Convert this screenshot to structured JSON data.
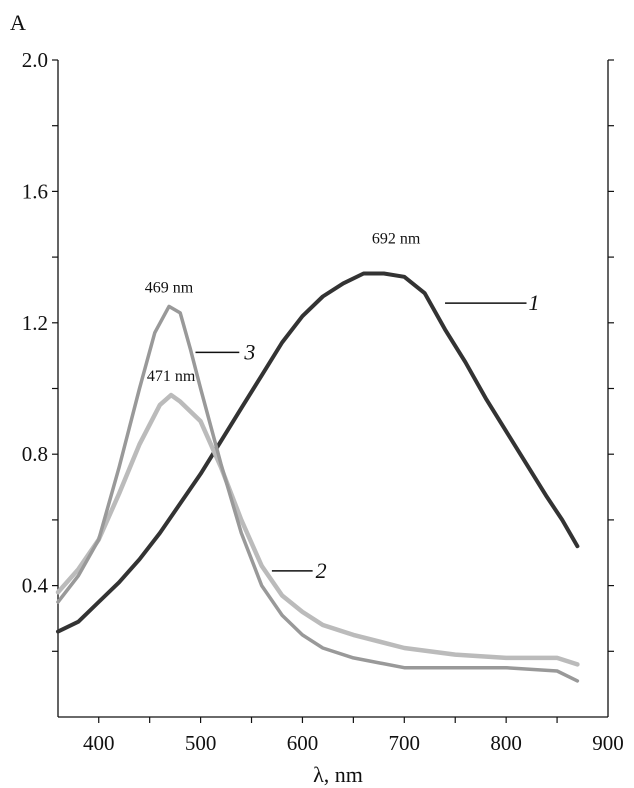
{
  "chart_data": {
    "type": "line",
    "xlabel": "λ, nm",
    "ylabel": "A",
    "xlim": [
      360,
      900
    ],
    "ylim": [
      0.0,
      2.0
    ],
    "x_ticks": [
      400,
      500,
      600,
      700,
      800,
      900
    ],
    "y_ticks": [
      0.4,
      0.8,
      1.2,
      1.6,
      2.0
    ],
    "grid": false,
    "series": [
      {
        "name": "1",
        "color": "#333333",
        "x": [
          360,
          380,
          400,
          420,
          440,
          460,
          480,
          500,
          520,
          540,
          560,
          580,
          600,
          620,
          640,
          660,
          680,
          700,
          720,
          740,
          760,
          780,
          800,
          820,
          840,
          855,
          870
        ],
        "y": [
          0.26,
          0.29,
          0.35,
          0.41,
          0.48,
          0.56,
          0.65,
          0.74,
          0.84,
          0.94,
          1.04,
          1.14,
          1.22,
          1.28,
          1.32,
          1.35,
          1.35,
          1.34,
          1.29,
          1.18,
          1.08,
          0.97,
          0.87,
          0.77,
          0.67,
          0.6,
          0.52
        ]
      },
      {
        "name": "2",
        "color": "#bbbbbb",
        "x": [
          360,
          380,
          400,
          420,
          440,
          460,
          471,
          480,
          500,
          520,
          540,
          560,
          580,
          600,
          620,
          650,
          700,
          750,
          800,
          850,
          870
        ],
        "y": [
          0.38,
          0.45,
          0.54,
          0.68,
          0.83,
          0.95,
          0.98,
          0.96,
          0.9,
          0.76,
          0.6,
          0.46,
          0.37,
          0.32,
          0.28,
          0.25,
          0.21,
          0.19,
          0.18,
          0.18,
          0.16
        ]
      },
      {
        "name": "3",
        "color": "#999999",
        "x": [
          360,
          380,
          400,
          420,
          440,
          455,
          469,
          480,
          490,
          500,
          520,
          540,
          560,
          580,
          600,
          620,
          650,
          700,
          750,
          800,
          850,
          870
        ],
        "y": [
          0.35,
          0.43,
          0.54,
          0.76,
          1.0,
          1.17,
          1.25,
          1.23,
          1.12,
          1.0,
          0.77,
          0.56,
          0.4,
          0.31,
          0.25,
          0.21,
          0.18,
          0.15,
          0.15,
          0.15,
          0.14,
          0.11
        ]
      }
    ],
    "annotations": [
      {
        "text": "692 nm",
        "series": "1",
        "x": 692,
        "y": 1.35
      },
      {
        "text": "469 nm",
        "series": "3",
        "x": 469,
        "y": 1.25
      },
      {
        "text": "471 nm",
        "series": "2",
        "x": 471,
        "y": 0.98
      }
    ]
  }
}
